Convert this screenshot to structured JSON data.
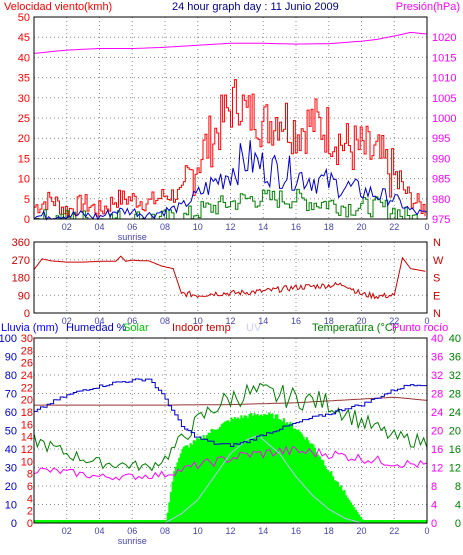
{
  "colors": {
    "wind": "#ff0000",
    "gust": "#ff0000",
    "wind_avg": "#0000cc",
    "wind_low": "#008000",
    "pressure": "#ff00ff",
    "direction": "#cc0000",
    "rain": "#0000ff",
    "humidity": "#0000cc",
    "solar": "#00ff00",
    "indoor": "#993333",
    "uv": "#bbbbff",
    "temp": "#008000",
    "dew": "#ff00ff",
    "sunrise": "#4444aa",
    "grid": "#888888",
    "axis": "#000000"
  },
  "chart_data": [
    {
      "type": "line",
      "title": "24 hour graph day : 11 Junio 2009",
      "left_label": "Velocidad viento(kmh)",
      "right_label": "Presión(hPa)",
      "x_ticks": [
        "02",
        "04",
        "06",
        "08",
        "10",
        "12",
        "14",
        "16",
        "18",
        "20",
        "22",
        "0"
      ],
      "sunrise_label": "sunrise",
      "y_left": {
        "min": 0,
        "max": 50,
        "ticks": [
          0,
          5,
          10,
          15,
          20,
          25,
          30,
          35,
          40,
          45,
          50
        ]
      },
      "y_right": {
        "min": 975,
        "max": 1025,
        "ticks": [
          975,
          980,
          985,
          990,
          995,
          1000,
          1005,
          1010,
          1015,
          1020
        ]
      },
      "series": [
        {
          "key": "gust",
          "axis": "left",
          "hours": [
            0,
            1,
            2,
            3,
            4,
            5,
            6,
            7,
            8,
            9,
            10,
            11,
            12,
            12.5,
            13,
            13.5,
            14,
            15,
            16,
            17,
            18,
            19,
            20,
            21,
            22,
            23,
            24
          ],
          "values": [
            3,
            5,
            2,
            4,
            2,
            5,
            5,
            4,
            6,
            6,
            15,
            21,
            28,
            30,
            25,
            27,
            23,
            26,
            22,
            24,
            22,
            18,
            17,
            15,
            10,
            5,
            2
          ]
        },
        {
          "key": "wind_avg",
          "axis": "left",
          "hours": [
            0,
            1,
            2,
            3,
            4,
            5,
            6,
            7,
            8,
            9,
            10,
            11,
            12,
            13,
            14,
            15,
            16,
            17,
            18,
            19,
            20,
            21,
            22,
            23,
            24
          ],
          "values": [
            0.5,
            1,
            1,
            1,
            0.5,
            2,
            2,
            1,
            2,
            3,
            6,
            9,
            12,
            15,
            13,
            12,
            11,
            10,
            9,
            8,
            7,
            6,
            5,
            2,
            1
          ]
        },
        {
          "key": "wind_low",
          "axis": "left",
          "hours": [
            0,
            1,
            2,
            3,
            4,
            5,
            6,
            7,
            8,
            9,
            10,
            11,
            12,
            13,
            14,
            15,
            16,
            17,
            18,
            19,
            20,
            21,
            22,
            23,
            24
          ],
          "values": [
            0,
            0,
            0,
            0,
            0,
            0,
            0,
            0,
            0,
            0,
            2,
            3,
            4,
            5,
            5,
            5,
            5,
            4,
            4,
            3,
            3,
            3,
            2,
            0,
            0
          ]
        },
        {
          "key": "pressure",
          "axis": "right",
          "hours": [
            0,
            2,
            4,
            6,
            8,
            10,
            12,
            14,
            16,
            18,
            20,
            21,
            22,
            23,
            24
          ],
          "values": [
            1016,
            1016.8,
            1017.2,
            1017.2,
            1017.5,
            1018,
            1018.5,
            1018.5,
            1018.3,
            1018.4,
            1019,
            1019.5,
            1020.3,
            1021.2,
            1020.8
          ]
        }
      ]
    },
    {
      "type": "line",
      "x_ticks": [
        "02",
        "04",
        "06",
        "08",
        "10",
        "12",
        "14",
        "16",
        "18",
        "20",
        "22",
        "0"
      ],
      "y_left": {
        "min": 0,
        "max": 360,
        "ticks": [
          0,
          90,
          180,
          270,
          360
        ]
      },
      "y_right_labels": [
        "N",
        "W",
        "S",
        "E",
        "N"
      ],
      "series": [
        {
          "key": "direction",
          "hours": [
            0,
            0.5,
            1,
            2,
            3,
            4,
            5,
            5.3,
            5.6,
            6,
            6.5,
            7,
            7.8,
            8.5,
            9,
            10,
            11,
            12,
            13,
            14,
            15,
            16,
            17,
            18,
            19,
            20,
            21,
            22,
            22.5,
            23,
            24
          ],
          "values": [
            220,
            275,
            265,
            258,
            258,
            262,
            262,
            288,
            262,
            268,
            265,
            265,
            238,
            225,
            100,
            90,
            100,
            100,
            105,
            110,
            120,
            130,
            135,
            140,
            145,
            95,
            85,
            90,
            280,
            225,
            210
          ]
        }
      ]
    },
    {
      "type": "line",
      "labels": {
        "rain": "Lluvia (mm)",
        "humidity": "Humedad %",
        "solar": "Solar",
        "indoor": "Indoor temp",
        "uv": "UV",
        "temp": "Temperatura (°C)",
        "dew": "Punto rocío"
      },
      "x_ticks": [
        "02",
        "04",
        "06",
        "08",
        "10",
        "12",
        "14",
        "16",
        "18",
        "20",
        "22",
        "0"
      ],
      "sunrise_label": "sunrise",
      "y_rain": {
        "min": 0,
        "max": 30,
        "ticks": [
          0,
          2,
          4,
          6,
          8,
          10,
          12,
          14,
          16,
          18,
          20,
          22,
          24,
          26,
          28,
          30
        ]
      },
      "y_humidity": {
        "min": 0,
        "max": 100,
        "ticks": [
          0,
          10,
          20,
          30,
          40,
          50,
          60,
          70,
          80,
          90,
          100
        ]
      },
      "y_temp": {
        "min": 0,
        "max": 40,
        "ticks": [
          0,
          4,
          8,
          12,
          16,
          20,
          24,
          28,
          32,
          36,
          40
        ]
      },
      "series": [
        {
          "key": "humidity",
          "axis": "humidity",
          "hours": [
            0,
            1,
            2,
            3,
            4,
            5,
            6,
            7,
            8,
            9,
            10,
            11,
            12,
            13,
            14,
            15,
            16,
            17,
            18,
            19,
            20,
            21,
            22,
            23,
            24
          ],
          "values": [
            60,
            65,
            69,
            72,
            74,
            76,
            77,
            78,
            67,
            52,
            46,
            43,
            42,
            44,
            48,
            51,
            54,
            57,
            59,
            62,
            64,
            68,
            72,
            75,
            75
          ]
        },
        {
          "key": "solar",
          "axis": "humidity",
          "hours": [
            8,
            8.5,
            9,
            10,
            11,
            12,
            13,
            14,
            15,
            16,
            17,
            18,
            19,
            20,
            20.5
          ],
          "values": [
            0,
            28,
            40,
            45,
            51,
            56,
            58,
            59,
            57,
            51,
            42,
            28,
            15,
            2,
            0
          ]
        },
        {
          "key": "indoor",
          "axis": "temp",
          "hours": [
            0,
            4,
            8,
            12,
            16,
            20,
            22,
            24
          ],
          "values": [
            25.5,
            25.5,
            25.5,
            25.6,
            26,
            26.8,
            27.2,
            26.5
          ]
        },
        {
          "key": "temp",
          "axis": "temp",
          "hours": [
            0,
            2,
            4,
            6,
            7,
            8,
            9,
            10,
            11,
            12,
            13,
            14,
            15,
            16,
            17,
            18,
            19,
            20,
            22,
            24
          ],
          "values": [
            18,
            15,
            13,
            12.5,
            12,
            14,
            18,
            22,
            25,
            27,
            28,
            28,
            27.5,
            27,
            26.5,
            26,
            24,
            22,
            18.5,
            17.5
          ]
        },
        {
          "key": "dew",
          "axis": "temp",
          "hours": [
            0,
            2,
            4,
            6,
            8,
            10,
            11,
            12,
            13,
            14,
            15,
            16,
            18,
            20,
            22,
            24
          ],
          "values": [
            11.5,
            11,
            10,
            10,
            10.5,
            12.5,
            13.2,
            14,
            14.8,
            15,
            15.5,
            15.5,
            15,
            14,
            13,
            12.5
          ]
        },
        {
          "key": "uv",
          "axis": "temp",
          "hours": [
            8,
            9,
            10,
            11,
            12,
            13,
            13.7,
            14,
            15,
            16,
            17,
            18,
            19,
            20
          ],
          "values": [
            0,
            2,
            5,
            10,
            15,
            18,
            19,
            18,
            15,
            10,
            6,
            3,
            1,
            0
          ]
        },
        {
          "key": "rain",
          "axis": "rain",
          "hours": [
            0,
            24
          ],
          "values": [
            0,
            0
          ]
        }
      ]
    }
  ]
}
